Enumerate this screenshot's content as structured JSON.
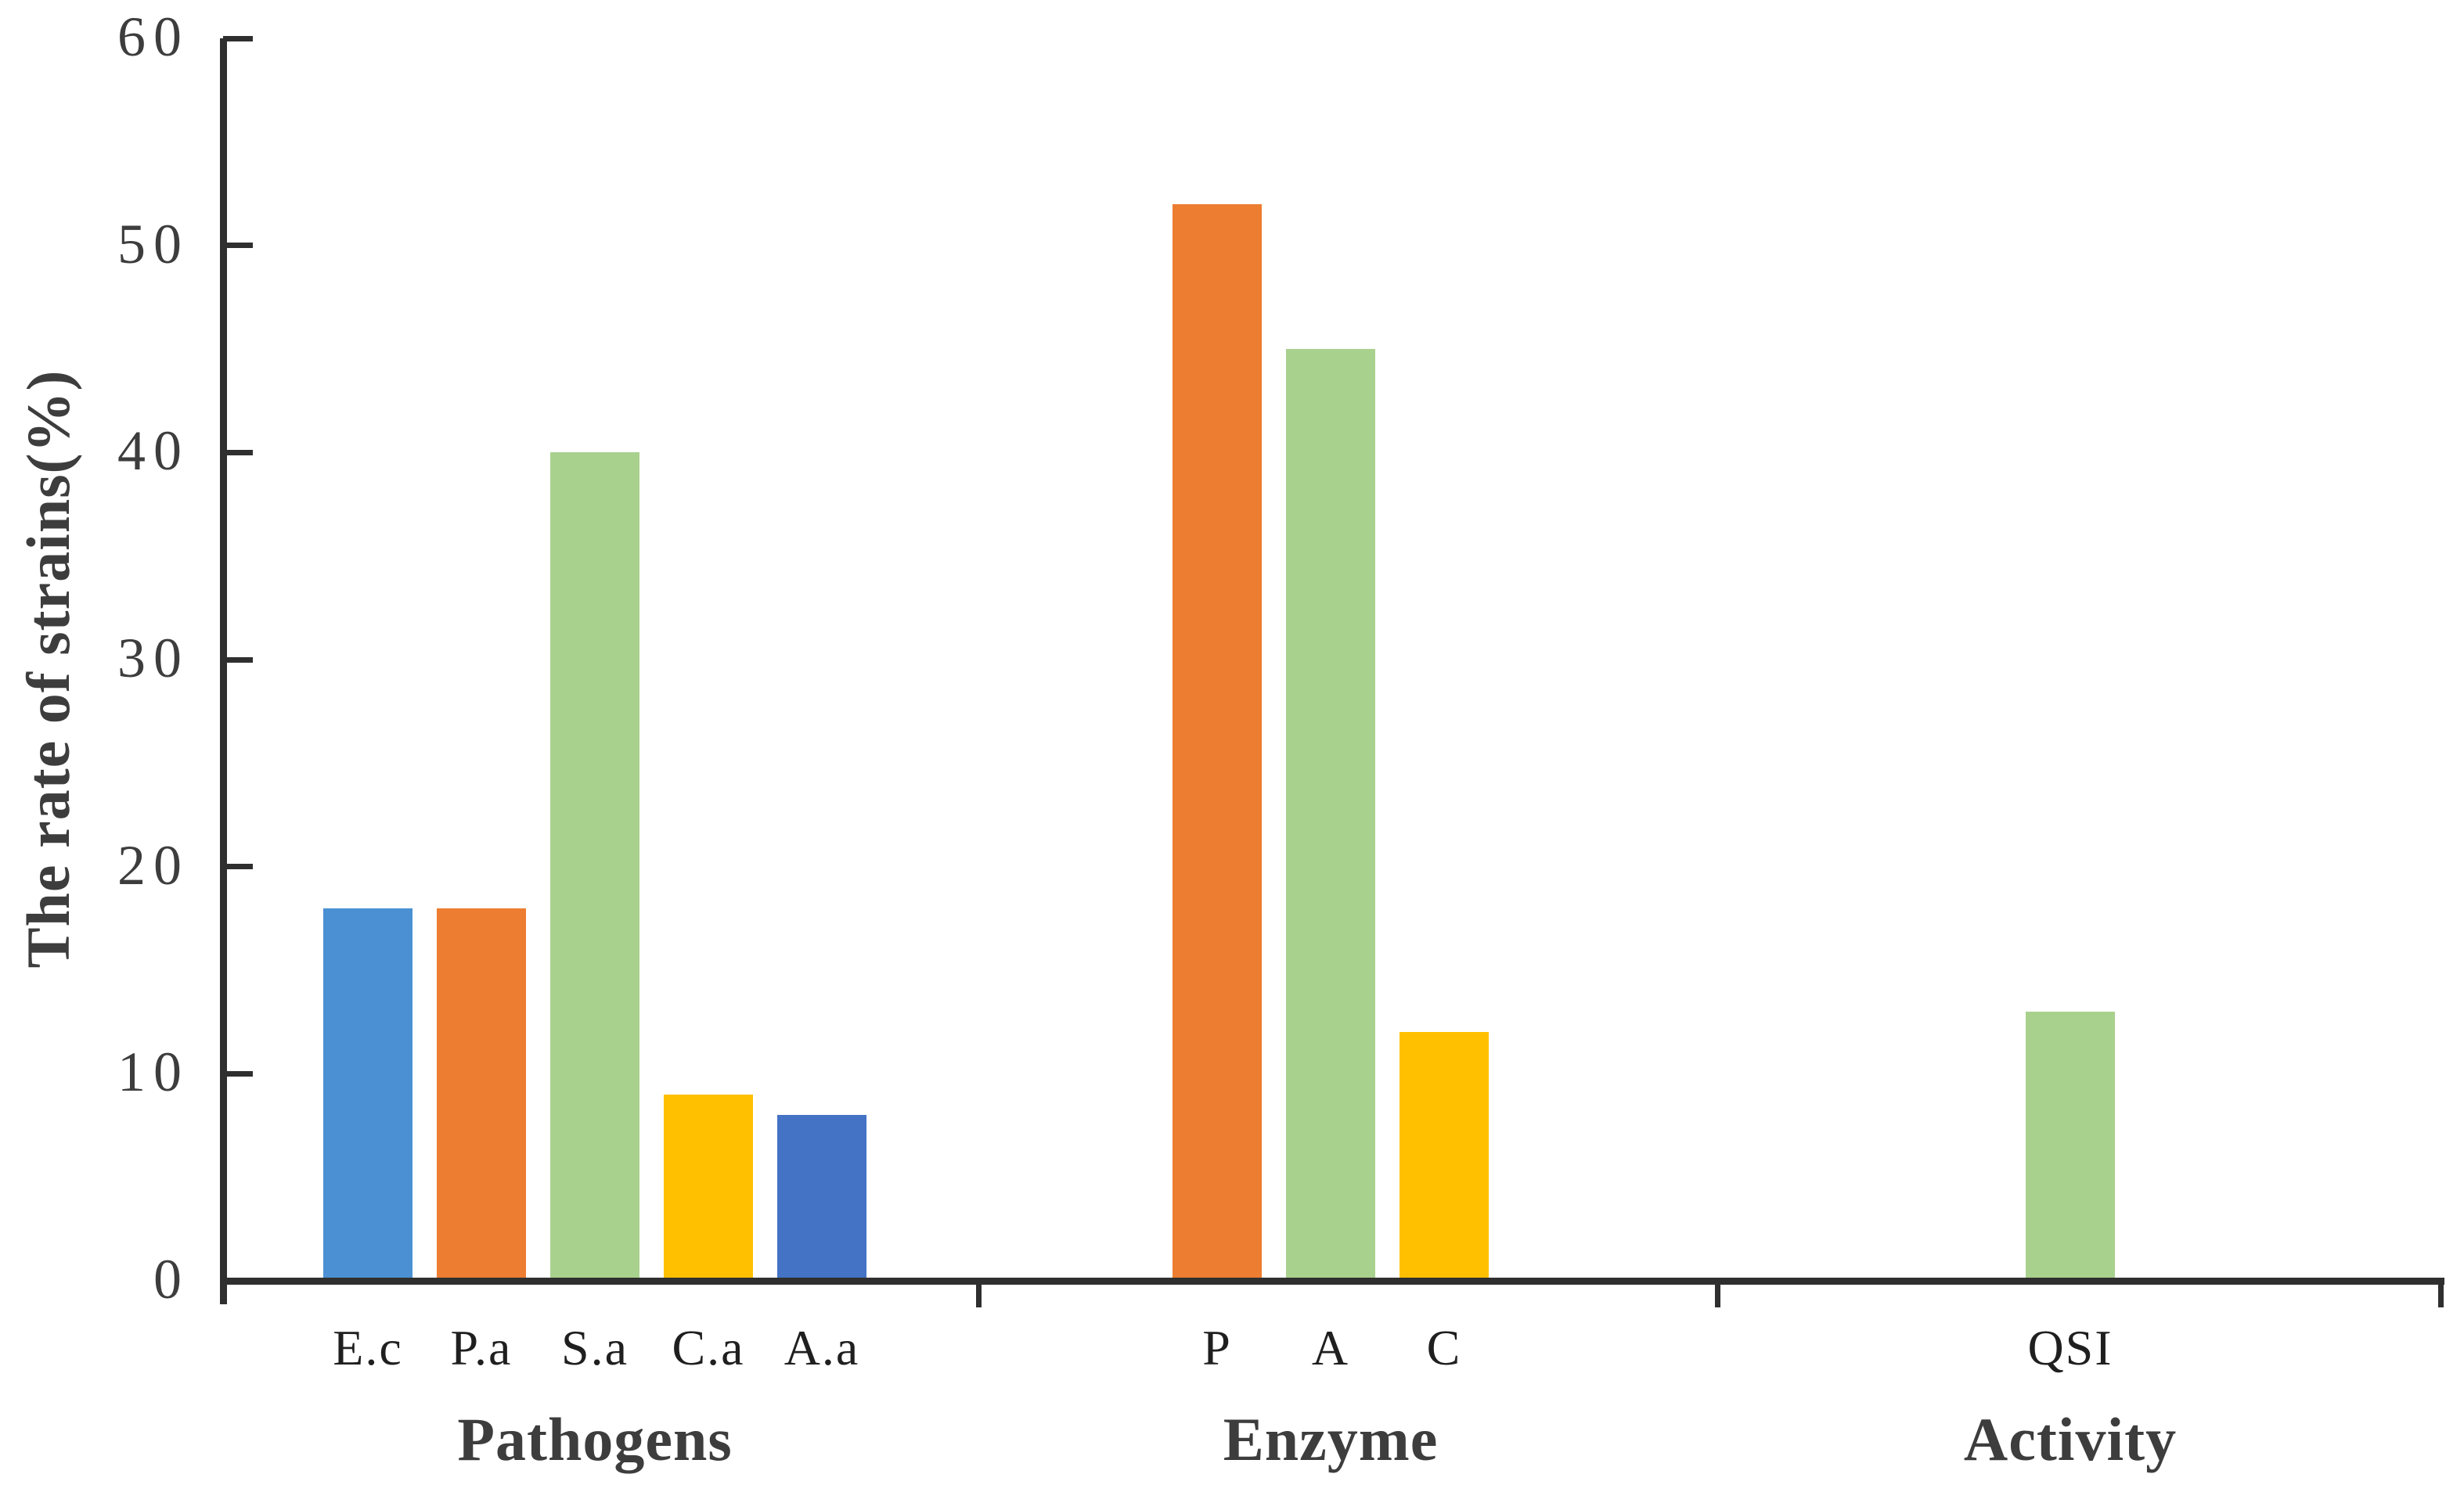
{
  "chart_data": {
    "type": "bar",
    "title": "",
    "xlabel": "",
    "ylabel": "The rate of strains(%)",
    "ylim": [
      0,
      60
    ],
    "yticks": [
      0,
      10,
      20,
      30,
      40,
      50,
      60
    ],
    "grid": false,
    "legend": "none",
    "groups": [
      {
        "label": "Pathogens",
        "bars": [
          {
            "label": "E.c",
            "value": 18,
            "color": "#4a90d3"
          },
          {
            "label": "P.a",
            "value": 18,
            "color": "#ed7d31"
          },
          {
            "label": "S.a",
            "value": 40,
            "color": "#a9d18e"
          },
          {
            "label": "C.a",
            "value": 9,
            "color": "#ffc000"
          },
          {
            "label": "A.a",
            "value": 8,
            "color": "#4472c4"
          }
        ]
      },
      {
        "label": "Enzyme",
        "bars": [
          {
            "label": "P",
            "value": 52,
            "color": "#ed7d31"
          },
          {
            "label": "A",
            "value": 45,
            "color": "#a9d18e"
          },
          {
            "label": "C",
            "value": 12,
            "color": "#ffc000"
          }
        ]
      },
      {
        "label": "Activity",
        "bars": [
          {
            "label": "QSI",
            "value": 13,
            "color": "#a9d18e"
          }
        ]
      }
    ],
    "colors": {
      "axis": "#2f2f2f",
      "tick_label": "#3d3d3d",
      "bar_label": "#1f1f1f",
      "group_label": "#3d3d3d"
    }
  }
}
